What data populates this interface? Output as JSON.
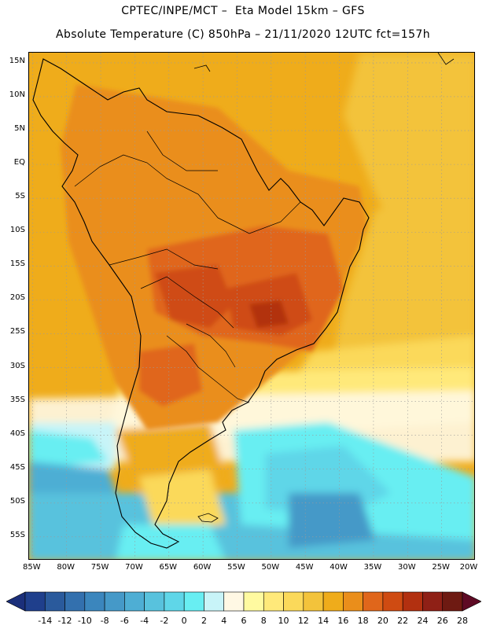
{
  "header": {
    "line1": "CPTEC/INPE/MCT –  Eta Model 15km – GFS",
    "line2": "Absolute Temperature (C) 850hPa – 21/11/2020 12UTC fct=157h"
  },
  "map": {
    "region": "South America",
    "lat_labels": [
      "15N",
      "10N",
      "5N",
      "EQ",
      "5S",
      "10S",
      "15S",
      "20S",
      "25S",
      "30S",
      "35S",
      "40S",
      "45S",
      "50S",
      "55S"
    ],
    "lat_values": [
      15,
      10,
      5,
      0,
      -5,
      -10,
      -15,
      -20,
      -25,
      -30,
      -35,
      -40,
      -45,
      -50,
      -55
    ],
    "lon_labels": [
      "85W",
      "80W",
      "75W",
      "70W",
      "65W",
      "60W",
      "55W",
      "50W",
      "45W",
      "40W",
      "35W",
      "30W",
      "25W",
      "20W"
    ],
    "lon_values": [
      -85,
      -80,
      -75,
      -70,
      -65,
      -60,
      -55,
      -50,
      -45,
      -40,
      -35,
      -30,
      -25,
      -20
    ],
    "lat_range": [
      -58.5,
      16.5
    ],
    "lon_range": [
      -85.5,
      -20
    ]
  },
  "colorbar": {
    "labels": [
      "-14",
      "-12",
      "-10",
      "-8",
      "-6",
      "-4",
      "-2",
      "0",
      "2",
      "4",
      "6",
      "8",
      "10",
      "12",
      "14",
      "16",
      "18",
      "20",
      "22",
      "24",
      "26",
      "28"
    ],
    "colors": [
      "#1f3f8c",
      "#2a5a9c",
      "#3370ae",
      "#3b86bd",
      "#4599c8",
      "#4eaed4",
      "#58c2dd",
      "#5fd6e8",
      "#68eef2",
      "#c8f4f8",
      "#fff8e4",
      "#fffaa0",
      "#ffe97a",
      "#fbd95a",
      "#f3c33b",
      "#efac1b",
      "#ea8e1b",
      "#e0661b",
      "#cf4b12",
      "#b23010",
      "#8f2016",
      "#6e1a12"
    ],
    "left_arrow": "#1b2f7a",
    "right_arrow": "#5e0a24"
  }
}
